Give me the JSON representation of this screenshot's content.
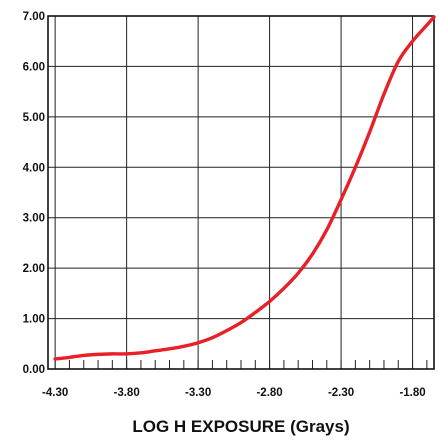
{
  "chart_data": {
    "type": "line",
    "title": "",
    "xlabel": "LOG H EXPOSURE (Grays)",
    "ylabel": "",
    "xlim": [
      -4.35,
      -1.65
    ],
    "ylim": [
      0,
      7
    ],
    "x_ticks": [
      -4.3,
      -3.8,
      -3.3,
      -2.8,
      -2.3,
      -1.8
    ],
    "x_tick_labels": [
      "-4.30",
      "-3.80",
      "-3.30",
      "-2.80",
      "-2.30",
      "-1.80"
    ],
    "y_ticks": [
      0,
      1,
      2,
      3,
      4,
      5,
      6,
      7
    ],
    "y_tick_labels": [
      "0.00",
      "1.00",
      "2.00",
      "3.00",
      "4.00",
      "5.00",
      "6.00",
      "7.00"
    ],
    "grid": true,
    "line_color": "#e8202a",
    "series": [
      {
        "x": [
          -4.3,
          -4.2,
          -4.1,
          -4.0,
          -3.9,
          -3.8,
          -3.7,
          -3.6,
          -3.5,
          -3.4,
          -3.3,
          -3.2,
          -3.1,
          -3.0,
          -2.9,
          -2.8,
          -2.7,
          -2.6,
          -2.5,
          -2.4,
          -2.3,
          -2.2,
          -2.1,
          -2.0,
          -1.9,
          -1.8,
          -1.7,
          -1.65
        ],
        "values": [
          0.2,
          0.23,
          0.27,
          0.29,
          0.3,
          0.3,
          0.32,
          0.36,
          0.4,
          0.45,
          0.52,
          0.62,
          0.76,
          0.92,
          1.12,
          1.34,
          1.6,
          1.9,
          2.28,
          2.76,
          3.36,
          4.0,
          4.7,
          5.45,
          6.1,
          6.5,
          6.82,
          6.98
        ]
      }
    ]
  }
}
